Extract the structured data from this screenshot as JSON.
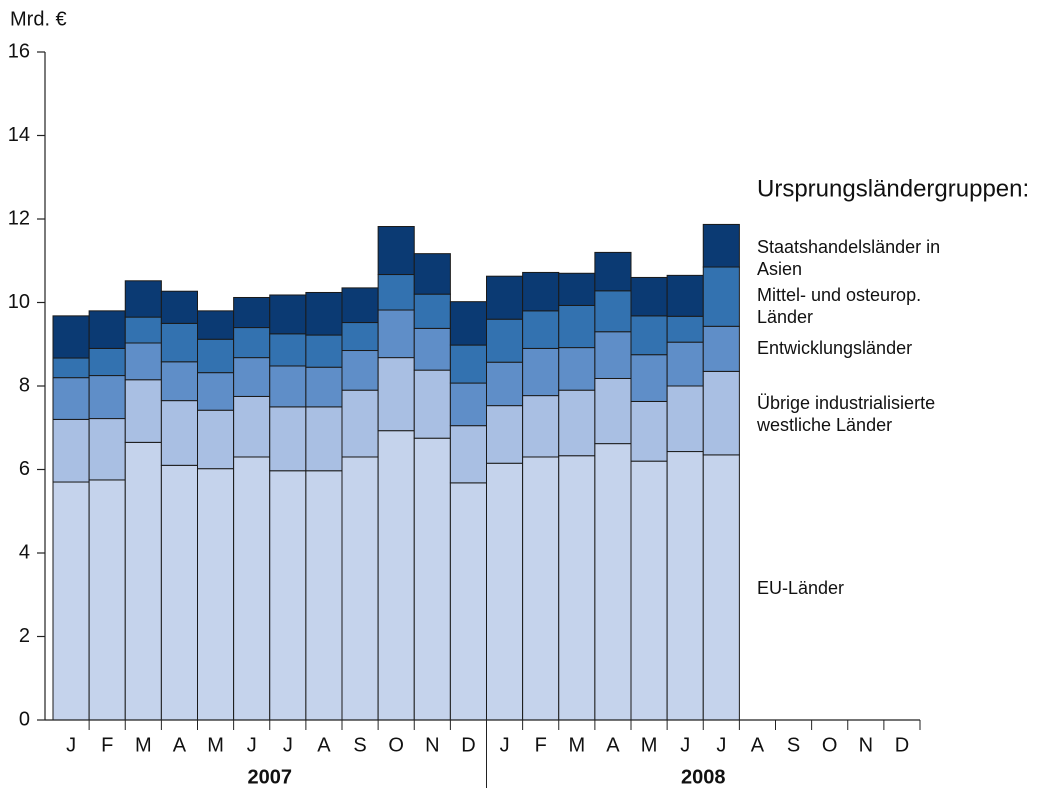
{
  "chart_data": {
    "type": "stacked-bar",
    "y_unit_label": "Mrd. €",
    "legend_title": "Ursprungsländergruppen:",
    "categories": [
      "J",
      "F",
      "M",
      "A",
      "M",
      "J",
      "J",
      "A",
      "S",
      "O",
      "N",
      "D",
      "J",
      "F",
      "M",
      "A",
      "M",
      "J",
      "J",
      "A",
      "S",
      "O",
      "N",
      "D"
    ],
    "groups": [
      "2007",
      "2008"
    ],
    "ylim": [
      0,
      16
    ],
    "yticks": [
      0,
      2,
      4,
      6,
      8,
      10,
      12,
      14,
      16
    ],
    "series": [
      {
        "name": "EU-Länder",
        "color": "#c5d3ec",
        "values": [
          5.7,
          5.75,
          6.65,
          6.1,
          6.02,
          6.3,
          5.97,
          5.97,
          6.3,
          6.93,
          6.75,
          5.68,
          6.15,
          6.3,
          6.33,
          6.62,
          6.2,
          6.43,
          6.35,
          null,
          null,
          null,
          null,
          null
        ]
      },
      {
        "name": "Übrige industrialisierte westliche Länder",
        "color": "#a9bfe3",
        "values": [
          1.5,
          1.47,
          1.5,
          1.55,
          1.4,
          1.45,
          1.53,
          1.53,
          1.6,
          1.75,
          1.63,
          1.37,
          1.38,
          1.47,
          1.57,
          1.56,
          1.43,
          1.57,
          2.0,
          null,
          null,
          null,
          null,
          null
        ]
      },
      {
        "name": "Entwicklungsländer",
        "color": "#5f8ec8",
        "values": [
          1.0,
          1.03,
          0.88,
          0.93,
          0.9,
          0.93,
          0.98,
          0.95,
          0.95,
          1.14,
          1.0,
          1.02,
          1.04,
          1.13,
          1.02,
          1.12,
          1.12,
          1.05,
          1.08,
          null,
          null,
          null,
          null,
          null
        ]
      },
      {
        "name": "Mittel- und osteurop. Länder",
        "color": "#3372b0",
        "values": [
          0.47,
          0.65,
          0.62,
          0.92,
          0.8,
          0.72,
          0.77,
          0.77,
          0.67,
          0.85,
          0.82,
          0.91,
          1.03,
          0.9,
          1.01,
          0.98,
          0.93,
          0.62,
          1.42,
          null,
          null,
          null,
          null,
          null
        ]
      },
      {
        "name": "Staatshandelsländer in Asien",
        "color": "#0b3a73",
        "values": [
          1.01,
          0.9,
          0.87,
          0.77,
          0.68,
          0.72,
          0.93,
          1.02,
          0.83,
          1.15,
          0.97,
          1.04,
          1.03,
          0.92,
          0.77,
          0.92,
          0.92,
          0.98,
          1.02,
          null,
          null,
          null,
          null,
          null
        ]
      }
    ]
  }
}
